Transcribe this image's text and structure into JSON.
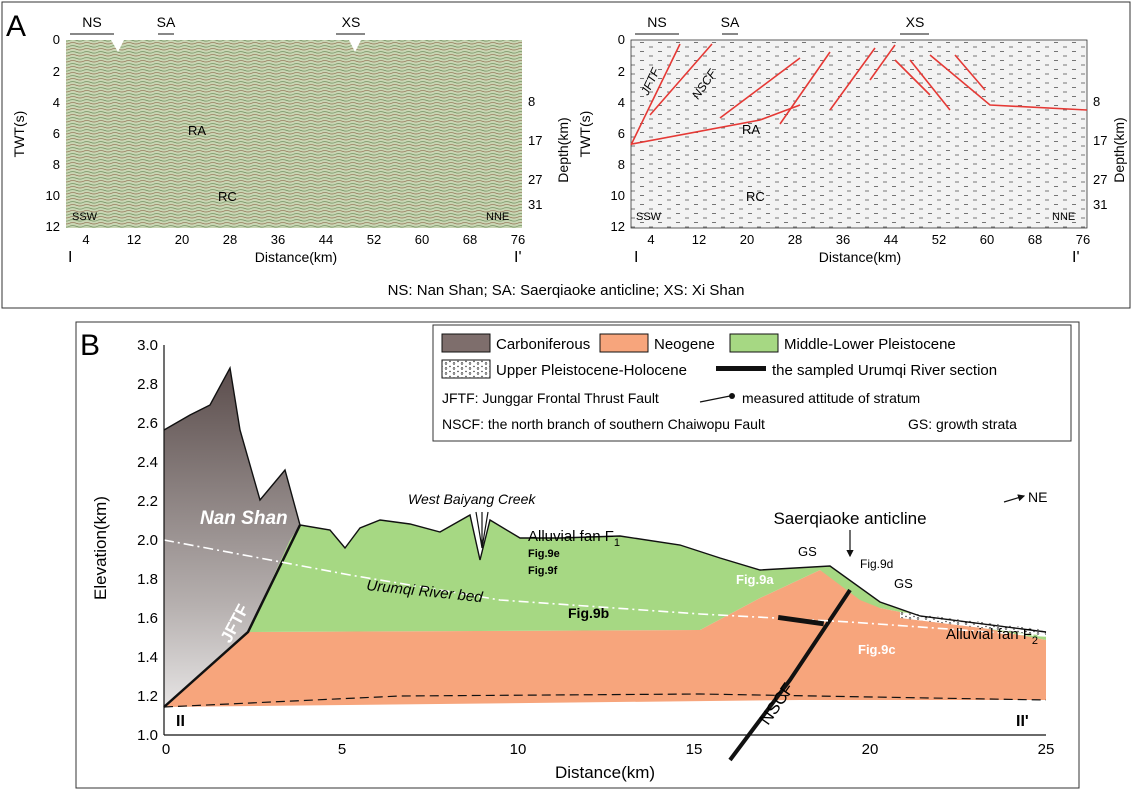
{
  "panel_a": {
    "letter": "A",
    "left_section": {
      "top_labels": [
        "NS",
        "SA",
        "XS"
      ],
      "y_axis_label": "TWT(s)",
      "y_ticks": [
        "0",
        "2",
        "4",
        "6",
        "8",
        "10",
        "12"
      ],
      "depth_label": "Depth(km)",
      "depth_ticks": [
        "8",
        "17",
        "27",
        "31"
      ],
      "x_ticks": [
        "4",
        "12",
        "20",
        "28",
        "36",
        "44",
        "52",
        "60",
        "68",
        "76"
      ],
      "x_label": "Distance(km)",
      "end_left": "I",
      "end_right": "I'",
      "dir_left": "SSW",
      "dir_right": "NNE",
      "reflector_a": "RA",
      "reflector_c": "RC"
    },
    "right_section": {
      "top_labels": [
        "NS",
        "SA",
        "XS"
      ],
      "y_axis_label": "TWT(s)",
      "y_ticks": [
        "0",
        "2",
        "4",
        "6",
        "8",
        "10",
        "12"
      ],
      "depth_label": "Depth(km)",
      "depth_ticks": [
        "8",
        "17",
        "27",
        "31"
      ],
      "x_ticks": [
        "4",
        "12",
        "20",
        "28",
        "36",
        "44",
        "52",
        "60",
        "68",
        "76"
      ],
      "x_label": "Distance(km)",
      "end_left": "I",
      "end_right": "I'",
      "dir_left": "SSW",
      "dir_right": "NNE",
      "reflector_a": "RA",
      "reflector_c": "RC",
      "fault_jftf": "JFTF",
      "fault_nscf": "NSCF"
    },
    "caption": "NS: Nan Shan; SA: Saerqiaoke anticline; XS: Xi Shan"
  },
  "panel_b": {
    "letter": "B",
    "y_axis_label": "Elevation(km)",
    "y_ticks": [
      "1.0",
      "1.2",
      "1.4",
      "1.6",
      "1.8",
      "2.0",
      "2.2",
      "2.4",
      "2.6",
      "2.8",
      "3.0"
    ],
    "x_ticks": [
      "0",
      "5",
      "10",
      "15",
      "20",
      "25"
    ],
    "x_label": "Distance(km)",
    "legend": {
      "carboniferous": "Carboniferous",
      "neogene": "Neogene",
      "pleistocene": "Middle-Lower  Pleistocene",
      "holocene": "Upper Pleistocene-Holocene",
      "sampled": "the sampled Urumqi River section",
      "jftf": "JFTF: Junggar Frontal Thrust Fault",
      "attitude": "measured attitude of stratum",
      "nscf": "NSCF: the north branch of southern Chaiwopu Fault",
      "gs": "GS: growth strata"
    },
    "colors": {
      "carboniferous": "#7e6e6c",
      "neogene": "#f7a57c",
      "pleistocene": "#a6d883",
      "fault_red": "#e53935"
    },
    "labels": {
      "nan_shan": "Nan Shan",
      "jftf": "JFTF",
      "nscf": "NSCF",
      "west_baiyang": "West Baiyang Creek",
      "fan_f1": "Alluvial fan F",
      "fan_f1_sub": "1",
      "fan_f2": "Alluvial fan F",
      "fan_f2_sub": "2",
      "urumqi_bed": "Urumqi River   bed",
      "saerqiaoke": "Saerqiaoke anticline",
      "gs1": "GS",
      "gs2": "GS",
      "fig9a": "Fig.9a",
      "fig9b": "Fig.9b",
      "fig9c": "Fig.9c",
      "fig9d": "Fig.9d",
      "fig9e": "Fig.9e",
      "fig9f": "Fig.9f",
      "ne": "NE",
      "end_left": "II",
      "end_right": "II'"
    }
  }
}
